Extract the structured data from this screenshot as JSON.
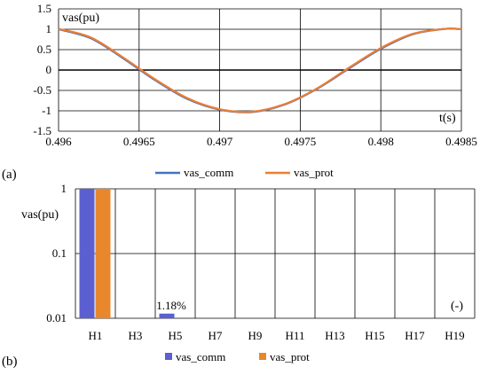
{
  "figure_labels": {
    "a": "(a)",
    "b": "(b)"
  },
  "chart_data": [
    {
      "type": "line",
      "ylabel": "vas(pu)",
      "xlabel": "t(s)",
      "xlim": [
        0.496,
        0.4985
      ],
      "ylim": [
        -1.5,
        1.5
      ],
      "xticks": [
        "0.496",
        "0.4965",
        "0.497",
        "0.4975",
        "0.498",
        "0.4985"
      ],
      "yticks": [
        "1.5",
        "1",
        "0.5",
        "0",
        "-0.5",
        "-1",
        "-1.5"
      ],
      "grid": true,
      "legend_position": "bottom",
      "colors": {
        "vas_comm": "#4472c4",
        "vas_prot": "#ed7d31"
      },
      "series": [
        {
          "name": "vas_comm",
          "x": [
            0.496,
            0.4962,
            0.4964,
            0.4966,
            0.4968,
            0.497,
            0.4972,
            0.4974,
            0.4976,
            0.4978,
            0.498,
            0.4982,
            0.4984,
            0.4985
          ],
          "y": [
            1.0,
            0.78,
            0.29,
            -0.25,
            -0.71,
            -0.97,
            -1.03,
            -0.85,
            -0.47,
            0.03,
            0.52,
            0.88,
            1.01,
            1.0
          ]
        },
        {
          "name": "vas_prot",
          "x": [
            0.496,
            0.4962,
            0.4964,
            0.4966,
            0.4968,
            0.497,
            0.4972,
            0.4974,
            0.4976,
            0.4978,
            0.498,
            0.4982,
            0.4984,
            0.4985
          ],
          "y": [
            1.01,
            0.8,
            0.31,
            -0.23,
            -0.69,
            -0.96,
            -1.02,
            -0.84,
            -0.46,
            0.05,
            0.54,
            0.89,
            1.01,
            1.0
          ]
        }
      ]
    },
    {
      "type": "bar",
      "ylabel": "vas(pu)",
      "unit_label": "(-)",
      "yscale": "log",
      "ylim": [
        0.01,
        1
      ],
      "yticks": [
        "1",
        "0.1",
        "0.01"
      ],
      "categories": [
        "H1",
        "H3",
        "H5",
        "H7",
        "H9",
        "H11",
        "H13",
        "H15",
        "H17",
        "H19"
      ],
      "grid": true,
      "legend_position": "bottom",
      "colors": {
        "vas_comm": "#5b5fd1",
        "vas_prot": "#e8872c"
      },
      "series": [
        {
          "name": "vas_comm",
          "values": [
            1.0,
            0,
            0.0118,
            0,
            0,
            0,
            0,
            0,
            0,
            0
          ]
        },
        {
          "name": "vas_prot",
          "values": [
            1.0,
            0,
            0,
            0,
            0,
            0,
            0,
            0,
            0,
            0
          ]
        }
      ],
      "annotations": [
        {
          "category": "H5",
          "text": "1.18%"
        }
      ]
    }
  ]
}
